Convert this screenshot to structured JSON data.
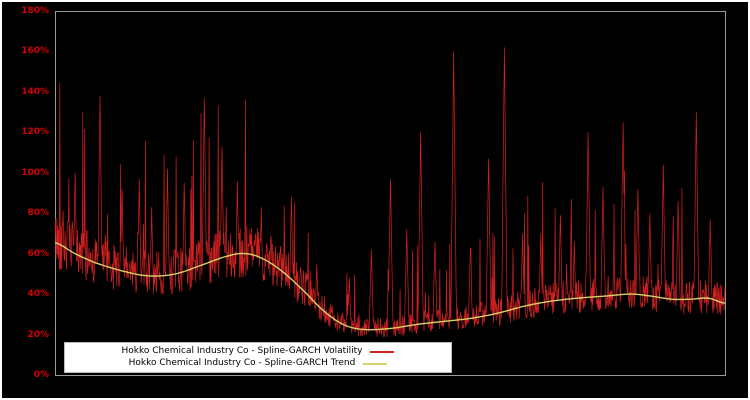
{
  "figure": {
    "background_color": "#000000",
    "outer_border_color": "#ffffff",
    "frame_color": "#9a9a9a"
  },
  "axis": {
    "tick_label_color": "#d40000"
  },
  "chart_data": {
    "type": "line",
    "title": "",
    "xlabel": "",
    "ylabel": "",
    "ylim": [
      0,
      180
    ],
    "yticks": [
      "0%",
      "20%",
      "40%",
      "60%",
      "80%",
      "100%",
      "120%",
      "140%",
      "160%",
      "180%"
    ],
    "ytick_values": [
      0,
      20,
      40,
      60,
      80,
      100,
      120,
      140,
      160,
      180
    ],
    "x_tick_labels": [],
    "grid": false,
    "legend_position": "lower-left",
    "series": [
      {
        "name": "Hokko Chemical Industry Co - Spline-GARCH Volatility",
        "color": "#d42020",
        "style": "spiky-volatility"
      },
      {
        "name": "Hokko Chemical Industry Co - Spline-GARCH Trend",
        "color": "#d8d06a",
        "style": "smooth-trend"
      }
    ],
    "trend_keypoints": {
      "x": [
        0,
        0.03,
        0.06,
        0.1,
        0.14,
        0.18,
        0.22,
        0.26,
        0.285,
        0.31,
        0.34,
        0.37,
        0.4,
        0.43,
        0.46,
        0.5,
        0.54,
        0.58,
        0.62,
        0.66,
        0.7,
        0.74,
        0.78,
        0.82,
        0.86,
        0.89,
        0.92,
        0.95,
        0.975,
        1.0
      ],
      "y_pct": [
        65.5,
        60,
        55.5,
        51.5,
        49,
        50,
        54.5,
        59,
        60,
        57.5,
        51,
        42,
        32,
        25,
        22.5,
        23,
        25,
        26.5,
        28,
        30.5,
        34,
        36.5,
        38,
        39,
        40,
        39,
        37.5,
        37.5,
        38,
        35.5
      ]
    },
    "volatility_spikes": {
      "x": [
        0.03,
        0.067,
        0.1,
        0.126,
        0.144,
        0.168,
        0.193,
        0.223,
        0.249,
        0.272,
        0.308,
        0.353,
        0.391,
        0.439,
        0.472,
        0.501,
        0.525,
        0.546,
        0.567,
        0.595,
        0.62,
        0.647,
        0.671,
        0.698,
        0.725,
        0.754,
        0.775,
        0.796,
        0.818,
        0.848,
        0.87,
        0.888,
        0.908,
        0.93,
        0.957,
        0.978
      ],
      "peak_pct": [
        100,
        138,
        92,
        97,
        83,
        102,
        95,
        137,
        113,
        96,
        83,
        88,
        55,
        48,
        62,
        97,
        72,
        120,
        66,
        160,
        63,
        107,
        162,
        70,
        70,
        79,
        66,
        120,
        93,
        125,
        92,
        80,
        104,
        86,
        130,
        77
      ]
    },
    "volatility_band": {
      "min_pct": 16,
      "base_low_factor": 0.8,
      "base_high_factor": 1.25,
      "medium_spike_prob": 0.055,
      "medium_spike_max_factor": 1.45,
      "seed": 42,
      "samples": 1400
    },
    "legend": [
      {
        "label": "Hokko Chemical Industry Co - Spline-GARCH Volatility"
      },
      {
        "label": "Hokko Chemical Industry Co - Spline-GARCH Trend"
      }
    ]
  }
}
